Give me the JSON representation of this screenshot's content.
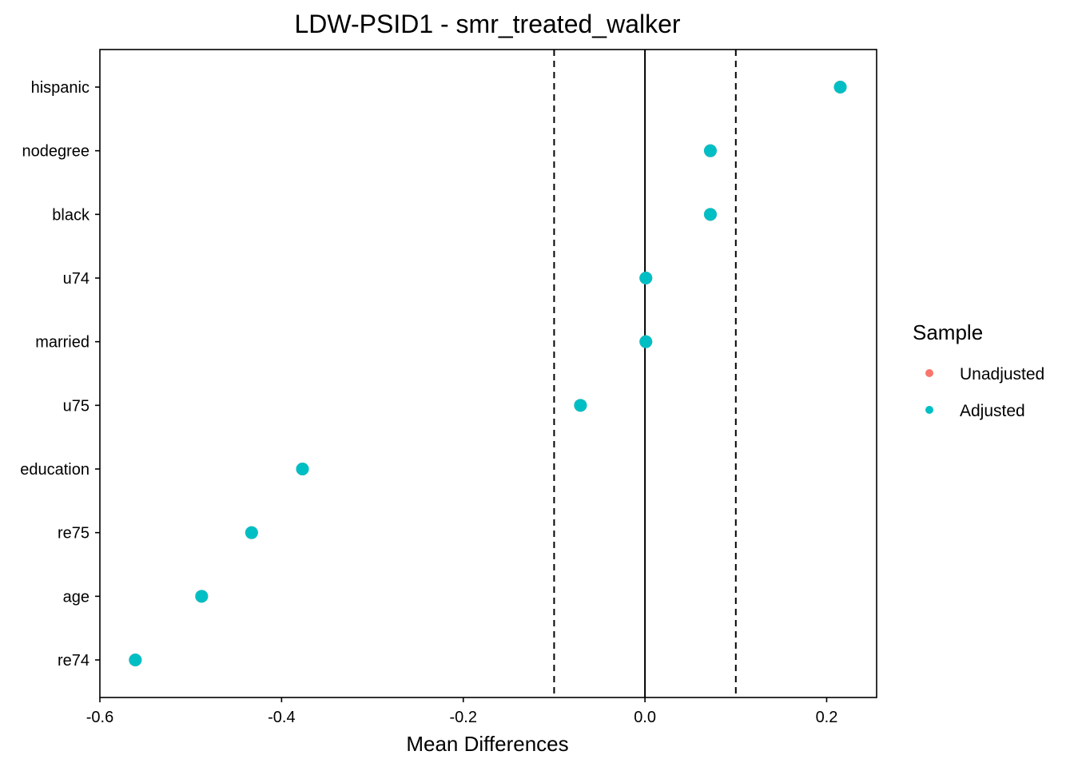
{
  "chart_data": {
    "type": "scatter",
    "title": "LDW-PSID1 - smr_treated_walker",
    "xlabel": "Mean Differences",
    "ylabel": "",
    "xlim": [
      -0.6,
      0.255
    ],
    "x_ticks": [
      -0.6,
      -0.4,
      -0.2,
      0.0,
      0.2
    ],
    "x_tick_labels": [
      "-0.6",
      "-0.4",
      "-0.2",
      "0.0",
      "0.2"
    ],
    "categories": [
      "hispanic",
      "nodegree",
      "black",
      "u74",
      "married",
      "u75",
      "education",
      "re75",
      "age",
      "re74"
    ],
    "series": [
      {
        "name": "Unadjusted",
        "color": "#F8766D",
        "values": [
          0.215,
          0.072,
          0.072,
          0.001,
          0.001,
          -0.071,
          -0.377,
          -0.433,
          -0.488,
          -0.561
        ]
      },
      {
        "name": "Adjusted",
        "color": "#00BFC4",
        "values": [
          0.215,
          0.072,
          0.072,
          0.001,
          0.001,
          -0.071,
          -0.377,
          -0.433,
          -0.488,
          -0.561
        ]
      }
    ],
    "reference_lines": {
      "solid": [
        0.0
      ],
      "dashed": [
        -0.1,
        0.1
      ]
    },
    "grid": false,
    "legend": {
      "title": "Sample",
      "placement": "right",
      "entries": [
        "Unadjusted",
        "Adjusted"
      ]
    }
  }
}
